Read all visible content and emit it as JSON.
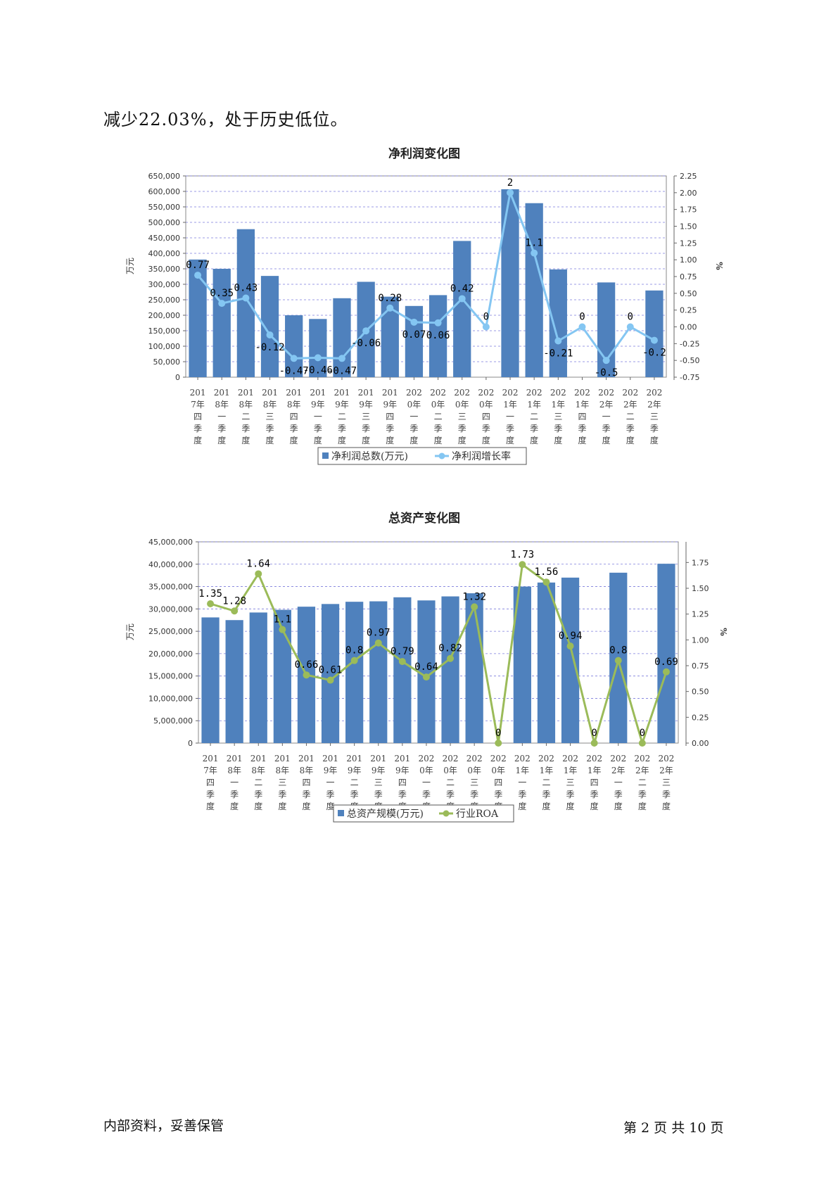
{
  "page": {
    "lead_text": "减少22.03%，处于历史低位。",
    "footer_left": "内部资料，妥善保管",
    "footer_right": "第 2 页  共 10 页"
  },
  "chart_data": [
    {
      "type": "bar",
      "title": "净利润变化图",
      "categories": [
        "2017年四季度",
        "2018年一季度",
        "2018年二季度",
        "2018年三季度",
        "2018年四季度",
        "2019年一季度",
        "2019年二季度",
        "2019年三季度",
        "2019年四季度",
        "2020年一季度",
        "2020年二季度",
        "2020年三季度",
        "2020年四季度",
        "2021年一季度",
        "2021年二季度",
        "2021年三季度",
        "2021年四季度",
        "2022年一季度",
        "2022年二季度",
        "2022年三季度"
      ],
      "tick_top": [
        "201",
        "201",
        "201",
        "201",
        "201",
        "201",
        "201",
        "201",
        "201",
        "202",
        "202",
        "202",
        "202",
        "202",
        "202",
        "202",
        "202",
        "202",
        "202",
        "202"
      ],
      "tick_bottom": [
        "7年四季度",
        "8年一季度",
        "8年二季度",
        "8年三季度",
        "8年四季度",
        "9年一季度",
        "9年二季度",
        "9年三季度",
        "9年四季度",
        "0年一季度",
        "0年二季度",
        "0年三季度",
        "0年四季度",
        "1年一季度",
        "1年二季度",
        "1年三季度",
        "1年四季度",
        "2年一季度",
        "2年二季度",
        "2年三季度"
      ],
      "ylabel": "万元",
      "y2label": "%",
      "ylim": [
        0,
        650000
      ],
      "y_ticks": [
        "650,000",
        "600,000",
        "550,000",
        "500,000",
        "450,000",
        "400,000",
        "350,000",
        "300,000",
        "250,000",
        "200,000",
        "150,000",
        "100,000",
        "50,000",
        "0"
      ],
      "y2lim": [
        -0.75,
        2.25
      ],
      "y2_ticks": [
        "2.25",
        "2.00",
        "1.75",
        "1.50",
        "1.25",
        "1.00",
        "0.75",
        "0.50",
        "0.25",
        "0.00",
        "-0.25",
        "-0.50",
        "-0.75"
      ],
      "series": [
        {
          "name": "净利润总数(万元)",
          "kind": "bar",
          "color": "#4f81bd",
          "values": [
            380000,
            350000,
            478000,
            327000,
            200000,
            188000,
            255000,
            308000,
            260000,
            230000,
            265000,
            440000,
            0,
            607000,
            562000,
            348000,
            0,
            306000,
            0,
            280000
          ]
        },
        {
          "name": "净利润增长率",
          "kind": "line",
          "color": "#84c6f2",
          "values": [
            0.77,
            0.35,
            0.43,
            -0.12,
            -0.47,
            -0.46,
            -0.47,
            -0.06,
            0.28,
            0.07,
            0.06,
            0.42,
            0,
            2,
            1.1,
            -0.21,
            0,
            -0.5,
            0,
            -0.2
          ],
          "labels": [
            "0.77",
            "0.35",
            "0.43",
            "-0.12",
            "-0.47",
            "-0.46",
            "-0.47",
            "-0.06",
            "0.28",
            "0.07",
            "0.06",
            "0.42",
            "0",
            "2",
            "1.1",
            "-0.21",
            "0",
            "-0.5",
            "0",
            "-0.2"
          ]
        }
      ],
      "legend": "bottom"
    },
    {
      "type": "bar",
      "title": "总资产变化图",
      "categories": [
        "2017年四季度",
        "2018年一季度",
        "2018年二季度",
        "2018年三季度",
        "2018年四季度",
        "2019年一季度",
        "2019年二季度",
        "2019年三季度",
        "2019年四季度",
        "2020年一季度",
        "2020年二季度",
        "2020年三季度",
        "2020年四季度",
        "2021年一季度",
        "2021年二季度",
        "2021年三季度",
        "2021年四季度",
        "2022年一季度",
        "2022年二季度",
        "2022年三季度"
      ],
      "tick_top": [
        "201",
        "201",
        "201",
        "201",
        "201",
        "201",
        "201",
        "201",
        "201",
        "202",
        "202",
        "202",
        "202",
        "202",
        "202",
        "202",
        "202",
        "202",
        "202",
        "202"
      ],
      "tick_bottom": [
        "7年四季度",
        "8年一季度",
        "8年二季度",
        "8年三季度",
        "8年四季度",
        "9年一季度",
        "9年二季度",
        "9年三季度",
        "9年四季度",
        "0年一季度",
        "0年二季度",
        "0年三季度",
        "0年四季度",
        "1年一季度",
        "1年二季度",
        "1年三季度",
        "1年四季度",
        "2年一季度",
        "2年二季度",
        "2年三季度"
      ],
      "ylabel": "万元",
      "y2label": "%",
      "ylim": [
        0,
        45000000
      ],
      "y_ticks": [
        "45,000,000",
        "40,000,000",
        "35,000,000",
        "30,000,000",
        "25,000,000",
        "20,000,000",
        "15,000,000",
        "10,000,000",
        "5,000,000",
        "0"
      ],
      "y2lim": [
        0,
        1.95
      ],
      "y2_ticks": [
        "1.75",
        "1.50",
        "1.25",
        "1.00",
        "0.75",
        "0.50",
        "0.25",
        "0.00"
      ],
      "series": [
        {
          "name": "总资产规模(万元)",
          "kind": "bar",
          "color": "#4f81bd",
          "values": [
            28100000,
            27500000,
            29200000,
            29800000,
            30500000,
            31100000,
            31600000,
            31700000,
            32600000,
            31900000,
            32800000,
            33500000,
            0,
            35000000,
            35900000,
            37000000,
            0,
            38100000,
            0,
            40100000
          ]
        },
        {
          "name": "行业ROA",
          "kind": "line",
          "color": "#9bbb59",
          "values": [
            1.35,
            1.28,
            1.64,
            1.1,
            0.66,
            0.61,
            0.8,
            0.97,
            0.79,
            0.64,
            0.82,
            1.32,
            0,
            1.73,
            1.56,
            0.94,
            0,
            0.8,
            0,
            0.69
          ],
          "labels": [
            "1.35",
            "1.28",
            "1.64",
            "1.1",
            "0.66",
            "0.61",
            "0.8",
            "0.97",
            "0.79",
            "0.64",
            "0.82",
            "1.32",
            "0",
            "1.73",
            "1.56",
            "0.94",
            "0",
            "0.8",
            "0",
            "0.69"
          ]
        }
      ],
      "legend": "bottom"
    }
  ]
}
